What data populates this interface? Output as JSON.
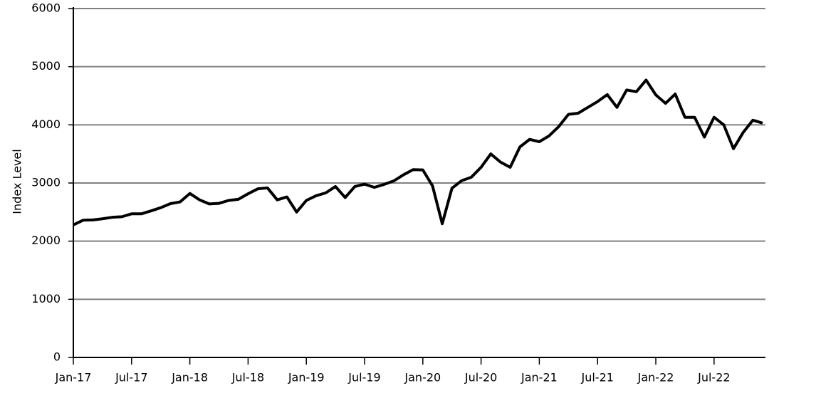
{
  "chart_data": {
    "type": "line",
    "ylabel": "Index Level",
    "x": [
      "2017-01",
      "2017-02",
      "2017-03",
      "2017-04",
      "2017-05",
      "2017-06",
      "2017-07",
      "2017-08",
      "2017-09",
      "2017-10",
      "2017-11",
      "2017-12",
      "2018-01",
      "2018-02",
      "2018-03",
      "2018-04",
      "2018-05",
      "2018-06",
      "2018-07",
      "2018-08",
      "2018-09",
      "2018-10",
      "2018-11",
      "2018-12",
      "2019-01",
      "2019-02",
      "2019-03",
      "2019-04",
      "2019-05",
      "2019-06",
      "2019-07",
      "2019-08",
      "2019-09",
      "2019-10",
      "2019-11",
      "2019-12",
      "2020-01",
      "2020-02",
      "2020-03",
      "2020-04",
      "2020-05",
      "2020-06",
      "2020-07",
      "2020-08",
      "2020-09",
      "2020-10",
      "2020-11",
      "2020-12",
      "2021-01",
      "2021-02",
      "2021-03",
      "2021-04",
      "2021-05",
      "2021-06",
      "2021-07",
      "2021-08",
      "2021-09",
      "2021-10",
      "2021-11",
      "2021-12",
      "2022-01",
      "2022-02",
      "2022-03",
      "2022-04",
      "2022-05",
      "2022-06",
      "2022-07",
      "2022-08",
      "2022-09",
      "2022-10",
      "2022-11",
      "2022-12"
    ],
    "values": [
      2280,
      2360,
      2365,
      2385,
      2410,
      2420,
      2470,
      2470,
      2520,
      2575,
      2645,
      2675,
      2820,
      2710,
      2640,
      2650,
      2700,
      2720,
      2815,
      2900,
      2915,
      2710,
      2760,
      2500,
      2700,
      2780,
      2830,
      2940,
      2750,
      2940,
      2980,
      2925,
      2975,
      3035,
      3140,
      3230,
      3225,
      2950,
      2300,
      2910,
      3040,
      3100,
      3270,
      3500,
      3360,
      3270,
      3620,
      3750,
      3710,
      3810,
      3970,
      4180,
      4200,
      4300,
      4400,
      4520,
      4300,
      4600,
      4570,
      4770,
      4515,
      4370,
      4530,
      4130,
      4130,
      3790,
      4130,
      4000,
      3590,
      3870,
      4080,
      4030
    ],
    "color": "#000000",
    "xlim": [
      "2017-01",
      "2022-12"
    ],
    "xticks": [
      {
        "value": "2017-01",
        "label": "Jan-17"
      },
      {
        "value": "2017-07",
        "label": "Jul-17"
      },
      {
        "value": "2018-01",
        "label": "Jan-18"
      },
      {
        "value": "2018-07",
        "label": "Jul-18"
      },
      {
        "value": "2019-01",
        "label": "Jan-19"
      },
      {
        "value": "2019-07",
        "label": "Jul-19"
      },
      {
        "value": "2020-01",
        "label": "Jan-20"
      },
      {
        "value": "2020-07",
        "label": "Jul-20"
      },
      {
        "value": "2021-01",
        "label": "Jan-21"
      },
      {
        "value": "2021-07",
        "label": "Jul-21"
      },
      {
        "value": "2022-01",
        "label": "Jan-22"
      },
      {
        "value": "2022-07",
        "label": "Jul-22"
      }
    ],
    "ylim": [
      0,
      6000
    ],
    "yticks": [
      0,
      1000,
      2000,
      3000,
      4000,
      5000,
      6000
    ],
    "grid": true
  }
}
